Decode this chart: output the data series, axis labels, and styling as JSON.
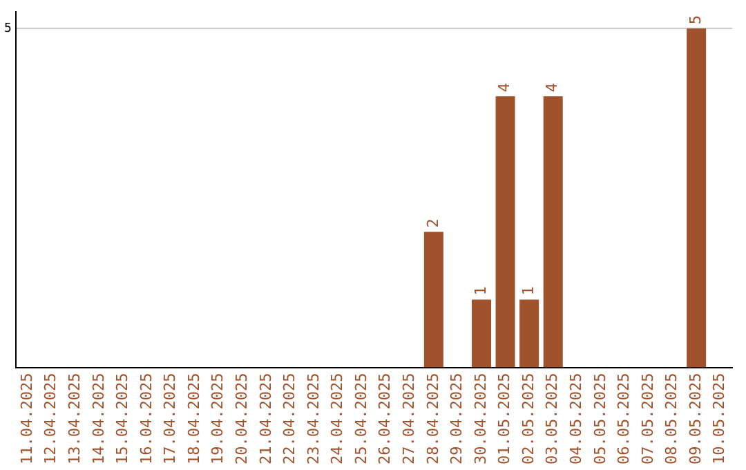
{
  "chart_data": {
    "type": "bar",
    "categories": [
      "11.04.2025",
      "12.04.2025",
      "13.04.2025",
      "14.04.2025",
      "15.04.2025",
      "16.04.2025",
      "17.04.2025",
      "18.04.2025",
      "19.04.2025",
      "20.04.2025",
      "21.04.2025",
      "22.04.2025",
      "23.04.2025",
      "24.04.2025",
      "25.04.2025",
      "26.04.2025",
      "27.04.2025",
      "28.04.2025",
      "29.04.2025",
      "30.04.2025",
      "01.05.2025",
      "02.05.2025",
      "03.05.2025",
      "04.05.2025",
      "05.05.2025",
      "06.05.2025",
      "07.05.2025",
      "08.05.2025",
      "09.05.2025",
      "10.05.2025"
    ],
    "values": [
      null,
      null,
      null,
      null,
      null,
      null,
      null,
      null,
      null,
      null,
      null,
      null,
      null,
      null,
      null,
      null,
      null,
      2,
      null,
      1,
      4,
      1,
      4,
      null,
      null,
      null,
      null,
      null,
      5,
      null
    ],
    "color": "#a0522d",
    "ylim": [
      0,
      5.25
    ],
    "yticks": [
      5
    ],
    "grid": "y",
    "data_labels": true,
    "legend": false
  }
}
